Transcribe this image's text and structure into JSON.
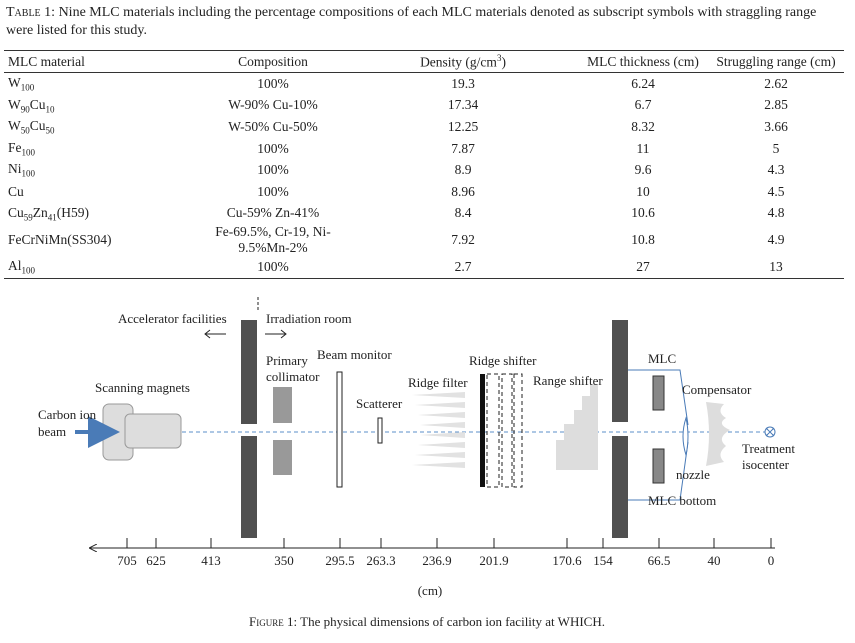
{
  "table": {
    "caption_label": "Table 1:",
    "caption": "Nine MLC materials including the percentage compositions of each MLC materials denoted as subscript symbols with straggling range were listed for this study.",
    "headers": [
      [
        "MLC material"
      ],
      [
        "Composition"
      ],
      [
        "Density (g/cm",
        "3",
        ")"
      ],
      [
        "MLC thickness (cm)"
      ],
      [
        "Struggling range (cm)"
      ]
    ],
    "rows": [
      [
        [
          "W",
          "100"
        ],
        "100%",
        19.3,
        6.24,
        2.62
      ],
      [
        [
          "W",
          "90",
          "Cu",
          "10"
        ],
        "W-90% Cu-10%",
        17.34,
        6.7,
        2.85
      ],
      [
        [
          "W",
          "50",
          "Cu",
          "50"
        ],
        "W-50% Cu-50%",
        12.25,
        8.32,
        3.66
      ],
      [
        [
          "Fe",
          "100"
        ],
        "100%",
        7.87,
        11,
        5
      ],
      [
        [
          "Ni",
          "100"
        ],
        "100%",
        8.9,
        9.6,
        4.3
      ],
      [
        [
          "Cu"
        ],
        "100%",
        8.96,
        10,
        4.5
      ],
      [
        [
          "Cu",
          "59",
          "Zn",
          "41",
          "(H59)"
        ],
        "Cu-59% Zn-41%",
        8.4,
        10.6,
        4.8
      ],
      [
        [
          "FeCrNiMn(SS304)"
        ],
        "Fe-69.5%, Cr-19, Ni-9.5%Mn-2%",
        7.92,
        10.8,
        4.9
      ],
      [
        [
          "Al",
          "100"
        ],
        "100%",
        2.7,
        27,
        13
      ]
    ]
  },
  "figure": {
    "labels": {
      "accelerator": "Accelerator facilities",
      "irradiation": "Irradiation room",
      "collimator": [
        "Primary",
        "collimator"
      ],
      "beam_monitor": "Beam monitor",
      "scatterer": "Scatterer",
      "ridge_filter": "Ridge filter",
      "ridge_shifter": "Ridge shifter",
      "range_shifter": "Range shifter",
      "mlc": "MLC",
      "compensator": "Compensator",
      "nozzle": "nozzle",
      "mlc_bottom": "MLC bottom",
      "magnets": "Scanning magnets",
      "beam": [
        "Carbon ion",
        "beam"
      ],
      "isocenter": [
        "Treatment",
        "isocenter"
      ]
    },
    "axis_ticks": [
      705,
      625,
      413,
      350,
      295.5,
      263.3,
      236.9,
      201.9,
      170.6,
      154,
      66.5,
      40,
      0
    ],
    "axis_unit": "(cm)",
    "caption_label": "Figure 1:",
    "caption": "The physical dimensions of carbon ion facility at WHICH."
  }
}
